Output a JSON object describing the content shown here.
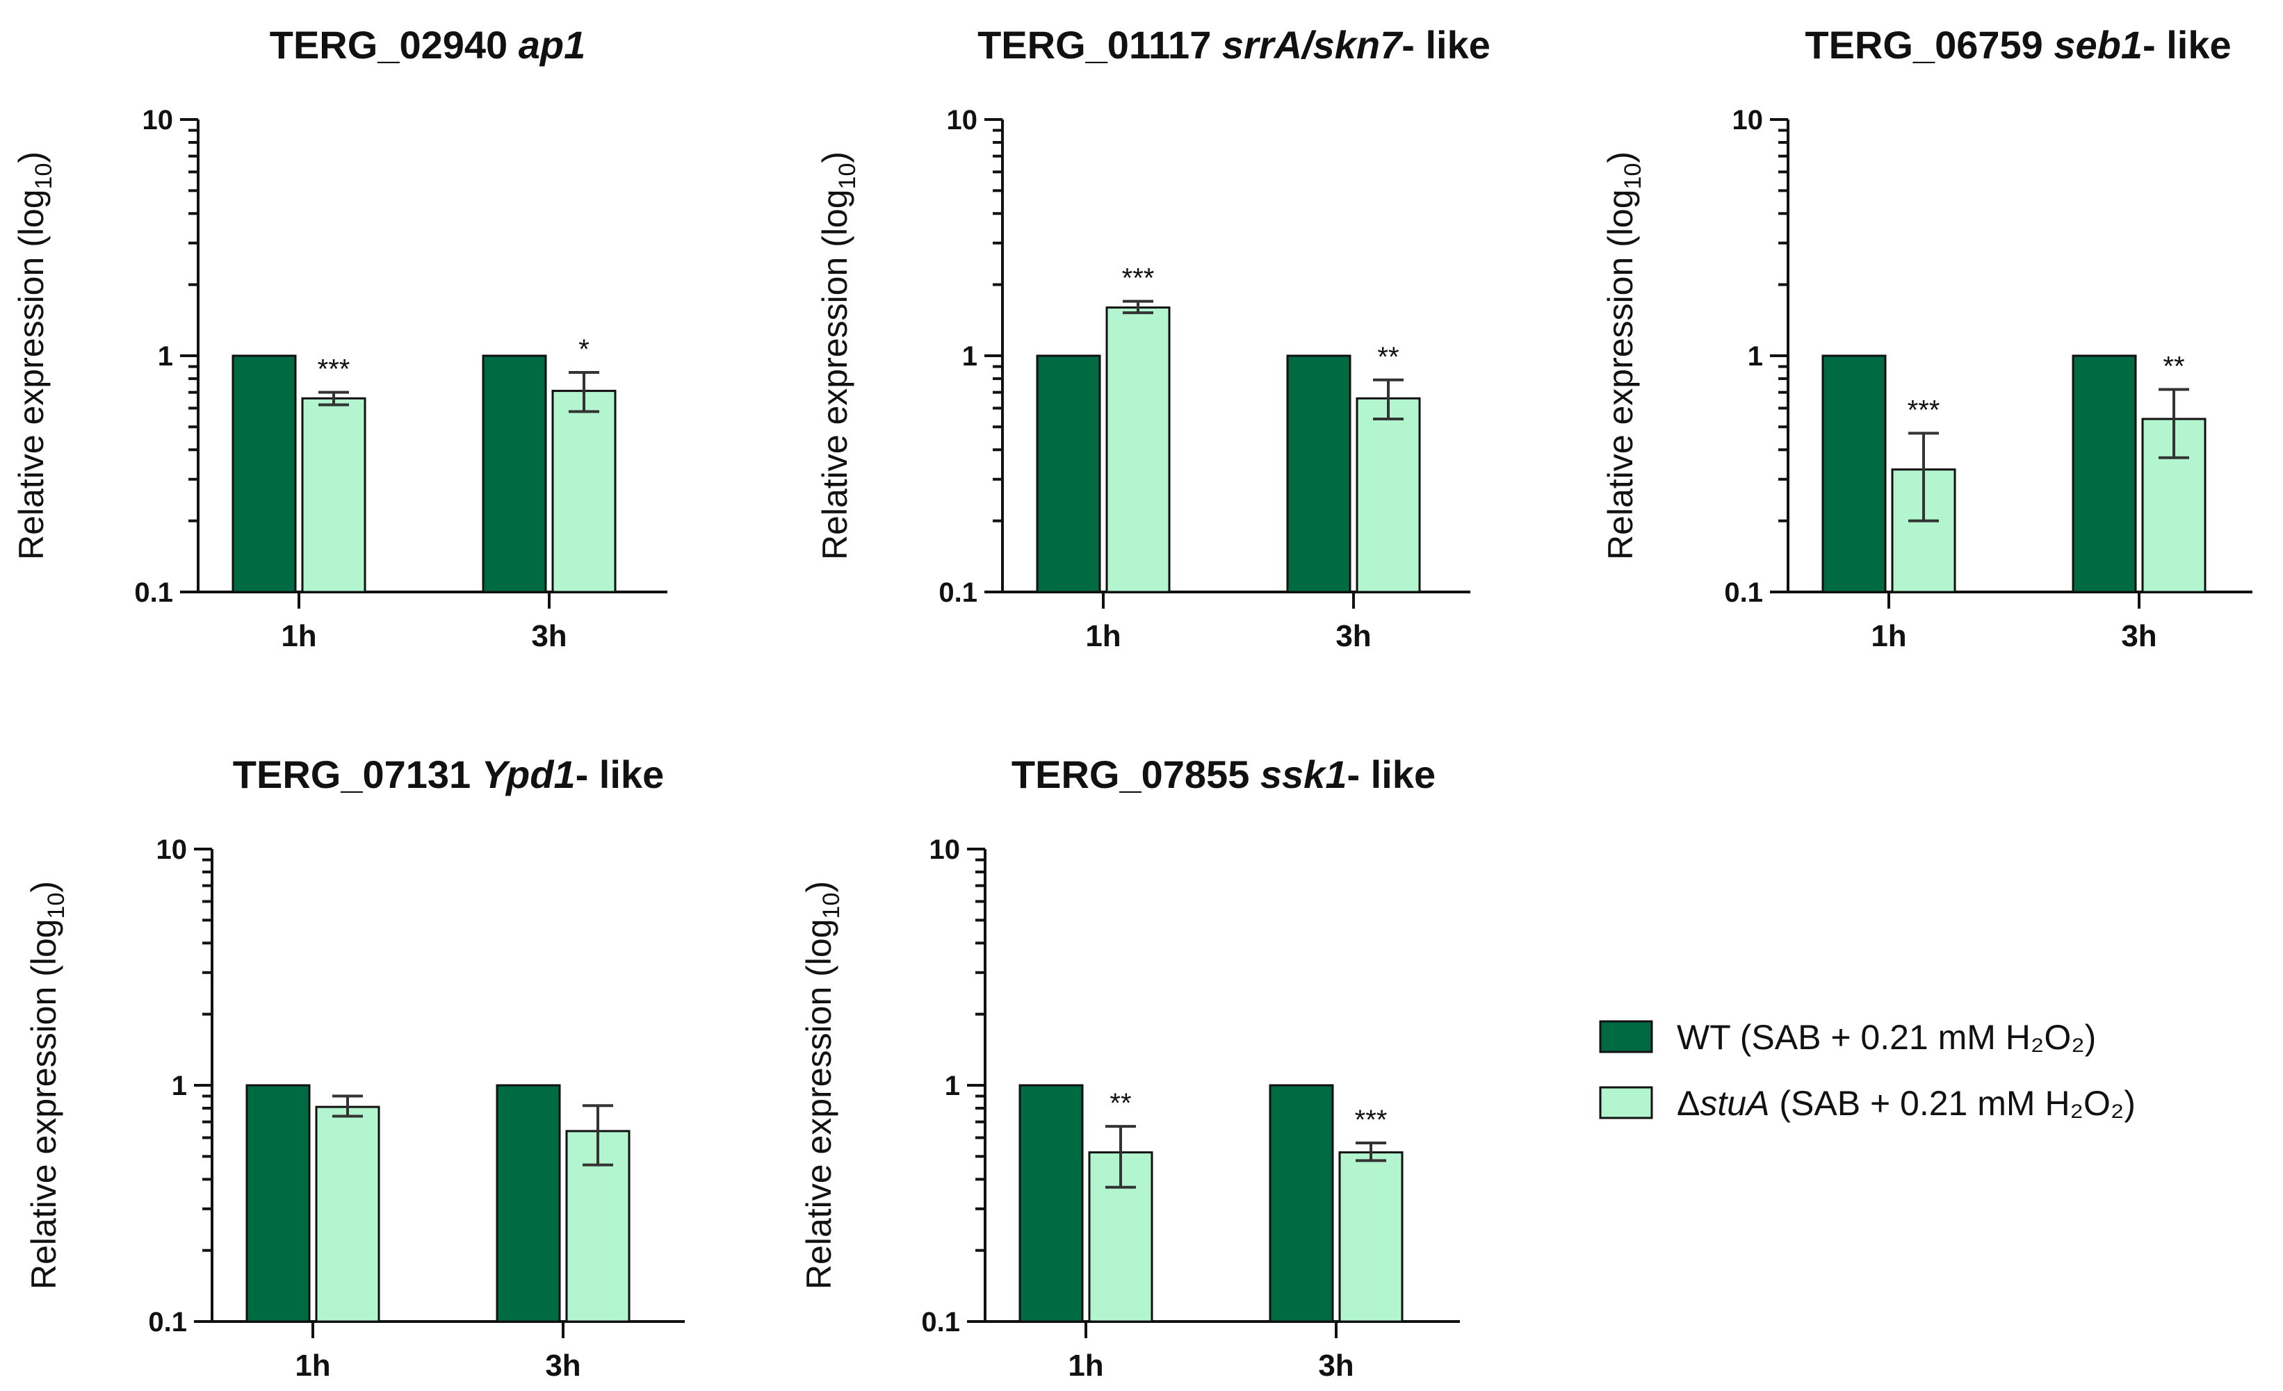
{
  "colors": {
    "wt": "#006B42",
    "mutant": "#B3F5CF"
  },
  "legend": {
    "wt_label": "WT (SAB + 0.21 mM H₂O₂)",
    "mutant_prefix": "Δ",
    "mutant_gene": "stuA",
    "mutant_suffix": " (SAB + 0.21 mM H₂O₂)"
  },
  "chart_data": [
    {
      "type": "bar",
      "title_id": "TERG_02940",
      "title_gene": "ap1",
      "title_suffix": "",
      "ylabel": "Relative expression (log",
      "ylabel_sub": "10",
      "ylabel_close": ")",
      "yscale": "log",
      "ylim": [
        0.1,
        10
      ],
      "yticks": [
        "0.1",
        "1",
        "10"
      ],
      "categories": [
        "1h",
        "3h"
      ],
      "series": [
        {
          "name": "WT",
          "values": [
            1,
            1
          ],
          "err": [
            null,
            null
          ],
          "sig": [
            "",
            ""
          ]
        },
        {
          "name": "ΔstuA",
          "values": [
            0.66,
            0.71
          ],
          "err": [
            [
              0.62,
              0.7
            ],
            [
              0.58,
              0.85
            ]
          ],
          "sig": [
            "***",
            "*"
          ]
        }
      ]
    },
    {
      "type": "bar",
      "title_id": "TERG_01117",
      "title_gene": "srrA/skn7",
      "title_suffix": "- like",
      "ylabel": "Relative expression (log",
      "ylabel_sub": "10",
      "ylabel_close": ")",
      "yscale": "log",
      "ylim": [
        0.1,
        10
      ],
      "yticks": [
        "0.1",
        "1",
        "10"
      ],
      "categories": [
        "1h",
        "3h"
      ],
      "series": [
        {
          "name": "WT",
          "values": [
            1,
            1
          ],
          "err": [
            null,
            null
          ],
          "sig": [
            "",
            ""
          ]
        },
        {
          "name": "ΔstuA",
          "values": [
            1.6,
            0.66
          ],
          "err": [
            [
              1.52,
              1.7
            ],
            [
              0.54,
              0.79
            ]
          ],
          "sig": [
            "***",
            "**"
          ]
        }
      ]
    },
    {
      "type": "bar",
      "title_id": "TERG_06759",
      "title_gene": "seb1",
      "title_suffix": "- like",
      "ylabel": "Relative expression (log",
      "ylabel_sub": "10",
      "ylabel_close": ")",
      "yscale": "log",
      "ylim": [
        0.1,
        10
      ],
      "yticks": [
        "0.1",
        "1",
        "10"
      ],
      "categories": [
        "1h",
        "3h"
      ],
      "series": [
        {
          "name": "WT",
          "values": [
            1,
            1
          ],
          "err": [
            null,
            null
          ],
          "sig": [
            "",
            ""
          ]
        },
        {
          "name": "ΔstuA",
          "values": [
            0.33,
            0.54
          ],
          "err": [
            [
              0.2,
              0.47
            ],
            [
              0.37,
              0.72
            ]
          ],
          "sig": [
            "***",
            "**"
          ]
        }
      ]
    },
    {
      "type": "bar",
      "title_id": "TERG_07131",
      "title_gene": "Ypd1",
      "title_suffix": "- like",
      "ylabel": "Relative expression (log",
      "ylabel_sub": "10",
      "ylabel_close": ")",
      "yscale": "log",
      "ylim": [
        0.1,
        10
      ],
      "yticks": [
        "0.1",
        "1",
        "10"
      ],
      "categories": [
        "1h",
        "3h"
      ],
      "series": [
        {
          "name": "WT",
          "values": [
            1,
            1
          ],
          "err": [
            null,
            null
          ],
          "sig": [
            "",
            ""
          ]
        },
        {
          "name": "ΔstuA",
          "values": [
            0.81,
            0.64
          ],
          "err": [
            [
              0.74,
              0.9
            ],
            [
              0.46,
              0.82
            ]
          ],
          "sig": [
            "",
            ""
          ]
        }
      ]
    },
    {
      "type": "bar",
      "title_id": "TERG_07855",
      "title_gene": "ssk1",
      "title_suffix": "- like",
      "ylabel": "Relative expression (log",
      "ylabel_sub": "10",
      "ylabel_close": ")",
      "yscale": "log",
      "ylim": [
        0.1,
        10
      ],
      "yticks": [
        "0.1",
        "1",
        "10"
      ],
      "categories": [
        "1h",
        "3h"
      ],
      "series": [
        {
          "name": "WT",
          "values": [
            1,
            1
          ],
          "err": [
            null,
            null
          ],
          "sig": [
            "",
            ""
          ]
        },
        {
          "name": "ΔstuA",
          "values": [
            0.52,
            0.52
          ],
          "err": [
            [
              0.37,
              0.67
            ],
            [
              0.48,
              0.57
            ]
          ],
          "sig": [
            "**",
            "***"
          ]
        }
      ]
    }
  ]
}
